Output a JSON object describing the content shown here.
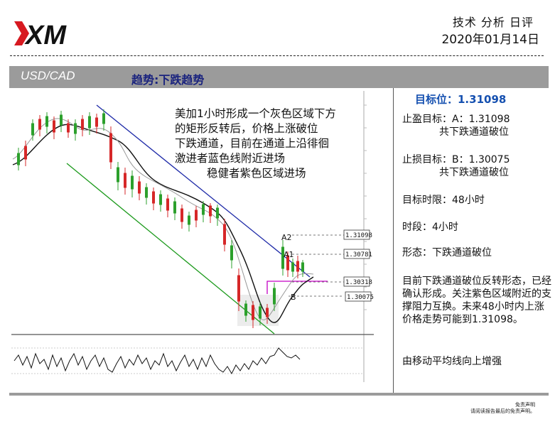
{
  "header": {
    "logo_text": "XM",
    "title": "技术 分析 日评",
    "date": "2020年01月14日"
  },
  "bar": {
    "pair": "USD/CAD",
    "trend": "趋势:下跌趋势"
  },
  "note": {
    "lines": [
      "美加1小时形成一个灰色区域下方",
      "的矩形反转后，价格上涨破位",
      "下跌通道，目前在通道上沿徘徊",
      "激进者蓝色线附近进场",
      "稳健者紫色区域进场"
    ]
  },
  "chart": {
    "price_labels": {
      "t1": "1.31098",
      "t2": "1.30781",
      "t3": "1.30318",
      "t4": "1.30075"
    },
    "markers": {
      "a2": "A2",
      "a1": "A1",
      "b": "B"
    }
  },
  "right_panel": {
    "target_label": "目标位：1.31098",
    "tp_line1": "止盈目标：A：1.31098",
    "tp_line2": "共下跌通道破位",
    "sl_line1": "止损目标：B：1.30075",
    "sl_line2": "共下跌通道破位",
    "timelimit": "目标时限：48小时",
    "period": "时段：4小时",
    "pattern": "形态：下跌通道破位",
    "analysis": "目前下跌通道破位反转形态，已经确认形成。关注紫色区域附近的支撑阻力互换。未来48小时内上涨价格走势可能到1.31098。",
    "ma_note": "由移动平均线向上增强"
  },
  "disclaimer": {
    "line1": "免责声明",
    "line2": "请阅读报告最后的免责声明。"
  },
  "colors": {
    "bar_gray": "#9b9b9b",
    "trend_navy": "#1a237e",
    "target_blue": "#1550b0",
    "logo_red": "#d71920",
    "candle_up": "#2ca02c",
    "candle_down": "#d62728",
    "channel_upper": "#1e2aa8",
    "channel_lower": "#1c9a1c",
    "purple_zone": "#c400c4"
  }
}
